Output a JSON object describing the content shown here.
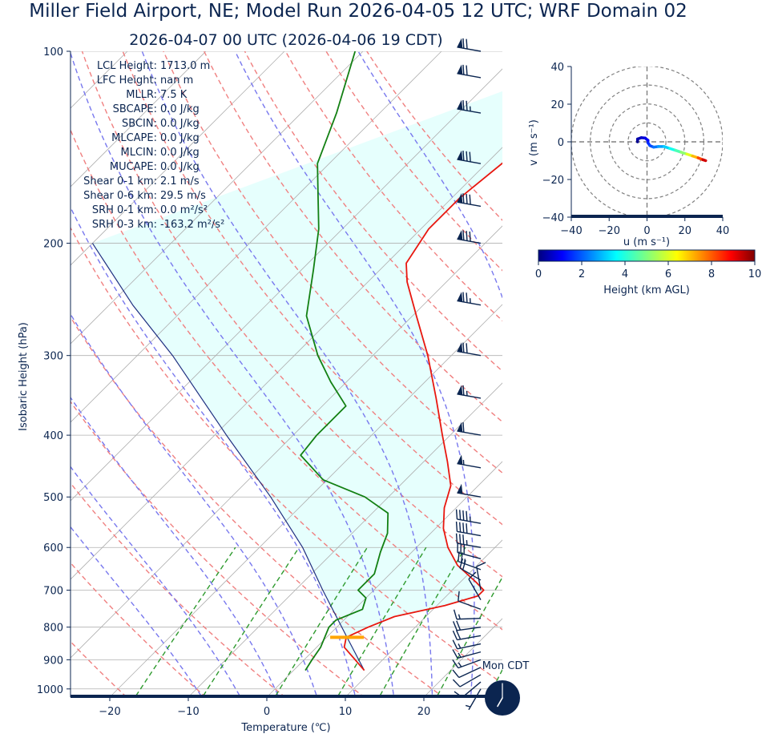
{
  "title": "Miller Field Airport, NE; Model Run 2026-04-05 12 UTC; WRF Domain 02",
  "subtitle": "2026-04-07 00 UTC  (2026-04-06 19 CDT)",
  "colors": {
    "text": "#0b2550",
    "temperature": "#e8170f",
    "dewpoint": "#138013",
    "parcel": "#1f2f80",
    "dry_adiabat": "#f08080",
    "moist_adiabat": "#7878ee",
    "mixing_ratio": "#2e9a2e",
    "cape_fill": "#e6fffd",
    "lcl_marker": "#ffa500",
    "barb": "#0b2550"
  },
  "chart_data": [
    {
      "type": "line",
      "name": "skew-t",
      "xlabel": "Temperature (℃)",
      "ylabel": "Isobaric Height (hPa)",
      "xlim": [
        -25,
        30
      ],
      "ylim": [
        1030,
        100
      ],
      "y_scale": "log",
      "x_ticks": [
        -20,
        -10,
        0,
        10,
        20
      ],
      "x_tick_labels": [
        "−20",
        "−10",
        "0",
        "10",
        "20"
      ],
      "y_ticks": [
        100,
        200,
        300,
        400,
        500,
        600,
        700,
        800,
        900,
        1000
      ],
      "y_tick_labels": [
        "100",
        "200",
        "300",
        "400",
        "500",
        "600",
        "700",
        "800",
        "900",
        "1000"
      ],
      "grid": true,
      "stats": [
        {
          "label": "LCL Height:",
          "value": "1713.0 m"
        },
        {
          "label": "LFC Height:",
          "value": "nan m"
        },
        {
          "label": "MLLR:",
          "value": "7.5 K"
        },
        {
          "label": "SBCAPE:",
          "value": "0.0 J/kg"
        },
        {
          "label": "SBCIN:",
          "value": "0.0 J/kg"
        },
        {
          "label": "MLCAPE:",
          "value": "0.0 J/kg"
        },
        {
          "label": "MLCIN:",
          "value": "0.0 J/kg"
        },
        {
          "label": "MUCAPE:",
          "value": "0.0 J/kg"
        },
        {
          "label": "Shear 0-1 km:",
          "value": "2.1 m/s"
        },
        {
          "label": "Shear 0-6 km:",
          "value": "29.5 m/s"
        },
        {
          "label": "SRH 0-1 km:",
          "value": "0.0 m²/s²"
        },
        {
          "label": "SRH 0-3 km:",
          "value": "-163.2 m²/s²"
        }
      ],
      "temperature": [
        {
          "p": 935,
          "t": 9.0
        },
        {
          "p": 900,
          "t": 6.5
        },
        {
          "p": 860,
          "t": 3.5
        },
        {
          "p": 830,
          "t": 2.5
        },
        {
          "p": 800,
          "t": 4.0
        },
        {
          "p": 770,
          "t": 6.0
        },
        {
          "p": 740,
          "t": 11.0
        },
        {
          "p": 715,
          "t": 14.0
        },
        {
          "p": 700,
          "t": 14.0
        },
        {
          "p": 680,
          "t": 12.0
        },
        {
          "p": 640,
          "t": 7.5
        },
        {
          "p": 600,
          "t": 4.0
        },
        {
          "p": 560,
          "t": 1.0
        },
        {
          "p": 520,
          "t": -1.5
        },
        {
          "p": 480,
          "t": -3.5
        },
        {
          "p": 440,
          "t": -7.0
        },
        {
          "p": 400,
          "t": -11.0
        },
        {
          "p": 350,
          "t": -16.5
        },
        {
          "p": 300,
          "t": -23.0
        },
        {
          "p": 260,
          "t": -29.5
        },
        {
          "p": 230,
          "t": -35.0
        },
        {
          "p": 215,
          "t": -37.5
        },
        {
          "p": 190,
          "t": -39.0
        },
        {
          "p": 170,
          "t": -39.0
        },
        {
          "p": 150,
          "t": -38.0
        },
        {
          "p": 130,
          "t": -37.0
        },
        {
          "p": 115,
          "t": -37.0
        },
        {
          "p": 100,
          "t": -38.5
        }
      ],
      "dewpoint": [
        {
          "p": 935,
          "t": 1.5
        },
        {
          "p": 900,
          "t": 1.0
        },
        {
          "p": 860,
          "t": 0.5
        },
        {
          "p": 800,
          "t": -1.0
        },
        {
          "p": 780,
          "t": -1.0
        },
        {
          "p": 750,
          "t": 1.0
        },
        {
          "p": 720,
          "t": 0.0
        },
        {
          "p": 700,
          "t": -2.0
        },
        {
          "p": 660,
          "t": -2.0
        },
        {
          "p": 610,
          "t": -4.0
        },
        {
          "p": 570,
          "t": -5.5
        },
        {
          "p": 530,
          "t": -8.0
        },
        {
          "p": 500,
          "t": -13.0
        },
        {
          "p": 470,
          "t": -20.5
        },
        {
          "p": 430,
          "t": -26.5
        },
        {
          "p": 400,
          "t": -27.0
        },
        {
          "p": 360,
          "t": -27.0
        },
        {
          "p": 330,
          "t": -32.0
        },
        {
          "p": 300,
          "t": -37.0
        },
        {
          "p": 260,
          "t": -43.5
        },
        {
          "p": 220,
          "t": -48.5
        },
        {
          "p": 190,
          "t": -53.0
        },
        {
          "p": 170,
          "t": -57.0
        },
        {
          "p": 150,
          "t": -61.5
        },
        {
          "p": 125,
          "t": -65.5
        },
        {
          "p": 100,
          "t": -71.0
        }
      ],
      "parcel": [
        {
          "p": 935,
          "t": 9.0
        },
        {
          "p": 830,
          "t": 2.6
        },
        {
          "p": 700,
          "t": -6.5
        },
        {
          "p": 600,
          "t": -14.5
        },
        {
          "p": 500,
          "t": -25.0
        },
        {
          "p": 400,
          "t": -38.5
        },
        {
          "p": 300,
          "t": -55.5
        },
        {
          "p": 250,
          "t": -67.0
        },
        {
          "p": 200,
          "t": -80.0
        }
      ],
      "lcl": {
        "p": 830,
        "t": 2.6
      },
      "dry_adiabats_theta_c": [
        -40,
        -30,
        -20,
        -10,
        0,
        10,
        20,
        30,
        40,
        50,
        60,
        70,
        80,
        90,
        100,
        110,
        120
      ],
      "moist_adiabats_thetaw_c": [
        -10,
        -5,
        0,
        5,
        10,
        15,
        20,
        25,
        30
      ],
      "mixing_ratio_gkg": [
        1,
        2,
        4,
        7,
        10,
        16,
        24,
        32
      ],
      "wind_barbs": [
        {
          "p": 1000,
          "spd": 5,
          "dir": 210
        },
        {
          "p": 975,
          "spd": 8,
          "dir": 230
        },
        {
          "p": 950,
          "spd": 10,
          "dir": 240
        },
        {
          "p": 925,
          "spd": 12,
          "dir": 245
        },
        {
          "p": 900,
          "spd": 15,
          "dir": 250
        },
        {
          "p": 875,
          "spd": 16,
          "dir": 255
        },
        {
          "p": 850,
          "spd": 17,
          "dir": 258
        },
        {
          "p": 825,
          "spd": 18,
          "dir": 260
        },
        {
          "p": 800,
          "spd": 18,
          "dir": 262
        },
        {
          "p": 775,
          "spd": 15,
          "dir": 268
        },
        {
          "p": 750,
          "spd": 12,
          "dir": 290
        },
        {
          "p": 725,
          "spd": 10,
          "dir": 330
        },
        {
          "p": 700,
          "spd": 10,
          "dir": 350
        },
        {
          "p": 675,
          "spd": 20,
          "dir": 300
        },
        {
          "p": 650,
          "spd": 25,
          "dir": 290
        },
        {
          "p": 625,
          "spd": 30,
          "dir": 285
        },
        {
          "p": 600,
          "spd": 35,
          "dir": 280
        },
        {
          "p": 575,
          "spd": 40,
          "dir": 280
        },
        {
          "p": 550,
          "spd": 45,
          "dir": 280
        },
        {
          "p": 500,
          "spd": 50,
          "dir": 280
        },
        {
          "p": 450,
          "spd": 55,
          "dir": 280
        },
        {
          "p": 400,
          "spd": 60,
          "dir": 280
        },
        {
          "p": 350,
          "spd": 65,
          "dir": 280
        },
        {
          "p": 300,
          "spd": 70,
          "dir": 280
        },
        {
          "p": 250,
          "spd": 75,
          "dir": 280
        },
        {
          "p": 200,
          "spd": 80,
          "dir": 280
        },
        {
          "p": 175,
          "spd": 80,
          "dir": 280
        },
        {
          "p": 150,
          "spd": 80,
          "dir": 280
        },
        {
          "p": 125,
          "spd": 75,
          "dir": 280
        },
        {
          "p": 110,
          "spd": 70,
          "dir": 280
        },
        {
          "p": 100,
          "spd": 70,
          "dir": 280
        }
      ]
    },
    {
      "type": "line",
      "name": "hodograph",
      "xlabel": "u (m s⁻¹)",
      "ylabel": "v (m s⁻¹)",
      "xlim": [
        -40,
        40
      ],
      "ylim": [
        -40,
        40
      ],
      "x_ticks": [
        -40,
        -20,
        0,
        20,
        40
      ],
      "x_tick_labels": [
        "−40",
        "−20",
        "0",
        "20",
        "40"
      ],
      "y_ticks": [
        -40,
        -20,
        0,
        20,
        40
      ],
      "y_tick_labels": [
        "−40",
        "−20",
        "0",
        "20",
        "40"
      ],
      "rings": [
        10,
        20,
        30,
        40
      ],
      "points": [
        {
          "u": -5.0,
          "v": 0.0,
          "h": 0.0
        },
        {
          "u": -5.0,
          "v": 1.5,
          "h": 0.3
        },
        {
          "u": -3.0,
          "v": 2.2,
          "h": 0.6
        },
        {
          "u": -1.0,
          "v": 2.0,
          "h": 0.9
        },
        {
          "u": 0.5,
          "v": 0.8,
          "h": 1.2
        },
        {
          "u": 0.5,
          "v": -0.5,
          "h": 1.5
        },
        {
          "u": 1.5,
          "v": -2.0,
          "h": 1.8
        },
        {
          "u": 3.5,
          "v": -2.8,
          "h": 2.2
        },
        {
          "u": 6.0,
          "v": -2.5,
          "h": 2.6
        },
        {
          "u": 9.0,
          "v": -2.5,
          "h": 3.0
        },
        {
          "u": 12.0,
          "v": -3.5,
          "h": 3.6
        },
        {
          "u": 15.0,
          "v": -4.5,
          "h": 4.2
        },
        {
          "u": 18.0,
          "v": -5.5,
          "h": 4.8
        },
        {
          "u": 21.0,
          "v": -6.5,
          "h": 5.5
        },
        {
          "u": 24.0,
          "v": -7.5,
          "h": 6.4
        },
        {
          "u": 27.0,
          "v": -8.5,
          "h": 7.5
        },
        {
          "u": 29.5,
          "v": -9.5,
          "h": 8.6
        },
        {
          "u": 31.0,
          "v": -10.0,
          "h": 9.8
        }
      ]
    },
    {
      "type": "heatmap",
      "name": "height-colorbar",
      "xlabel": "Height (km AGL)",
      "xlim": [
        0,
        10
      ],
      "x_ticks": [
        0,
        2,
        4,
        6,
        8,
        10
      ],
      "x_tick_labels": [
        "0",
        "2",
        "4",
        "6",
        "8",
        "10"
      ],
      "colormap": "jet"
    }
  ],
  "clock": {
    "label": "Mon CDT",
    "hour": 19,
    "minute": 0
  }
}
